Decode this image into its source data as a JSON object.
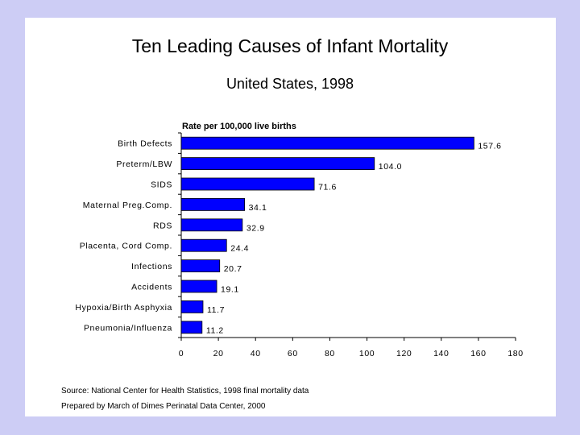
{
  "colors": {
    "background": "#cdcdf5",
    "panel": "#ffffff",
    "bar": "#0000ff"
  },
  "chart_data": {
    "type": "bar",
    "orientation": "horizontal",
    "title": "Ten Leading Causes of Infant Mortality",
    "subtitle": "United States, 1998",
    "ylabel": "Rate per 100,000 live births",
    "categories": [
      "Birth Defects",
      "Preterm/LBW",
      "SIDS",
      "Maternal Preg.Comp.",
      "RDS",
      "Placenta, Cord Comp.",
      "Infections",
      "Accidents",
      "Hypoxia/Birth Asphyxia",
      "Pneumonia/Influenza"
    ],
    "values": [
      157.6,
      104.0,
      71.6,
      34.1,
      32.9,
      24.4,
      20.7,
      19.1,
      11.7,
      11.2
    ],
    "value_labels": [
      "157.6",
      "104.0",
      "71.6",
      "34.1",
      "32.9",
      "24.4",
      "20.7",
      "19.1",
      "11.7",
      "11.2"
    ],
    "xlim": [
      0,
      180
    ],
    "xticks": [
      0,
      20,
      40,
      60,
      80,
      100,
      120,
      140,
      160,
      180
    ],
    "grid": false,
    "legend": "none"
  },
  "source": {
    "line1": "Source: National Center for Health Statistics, 1998 final mortality data",
    "line2": "Prepared by March of Dimes Perinatal Data Center, 2000"
  }
}
